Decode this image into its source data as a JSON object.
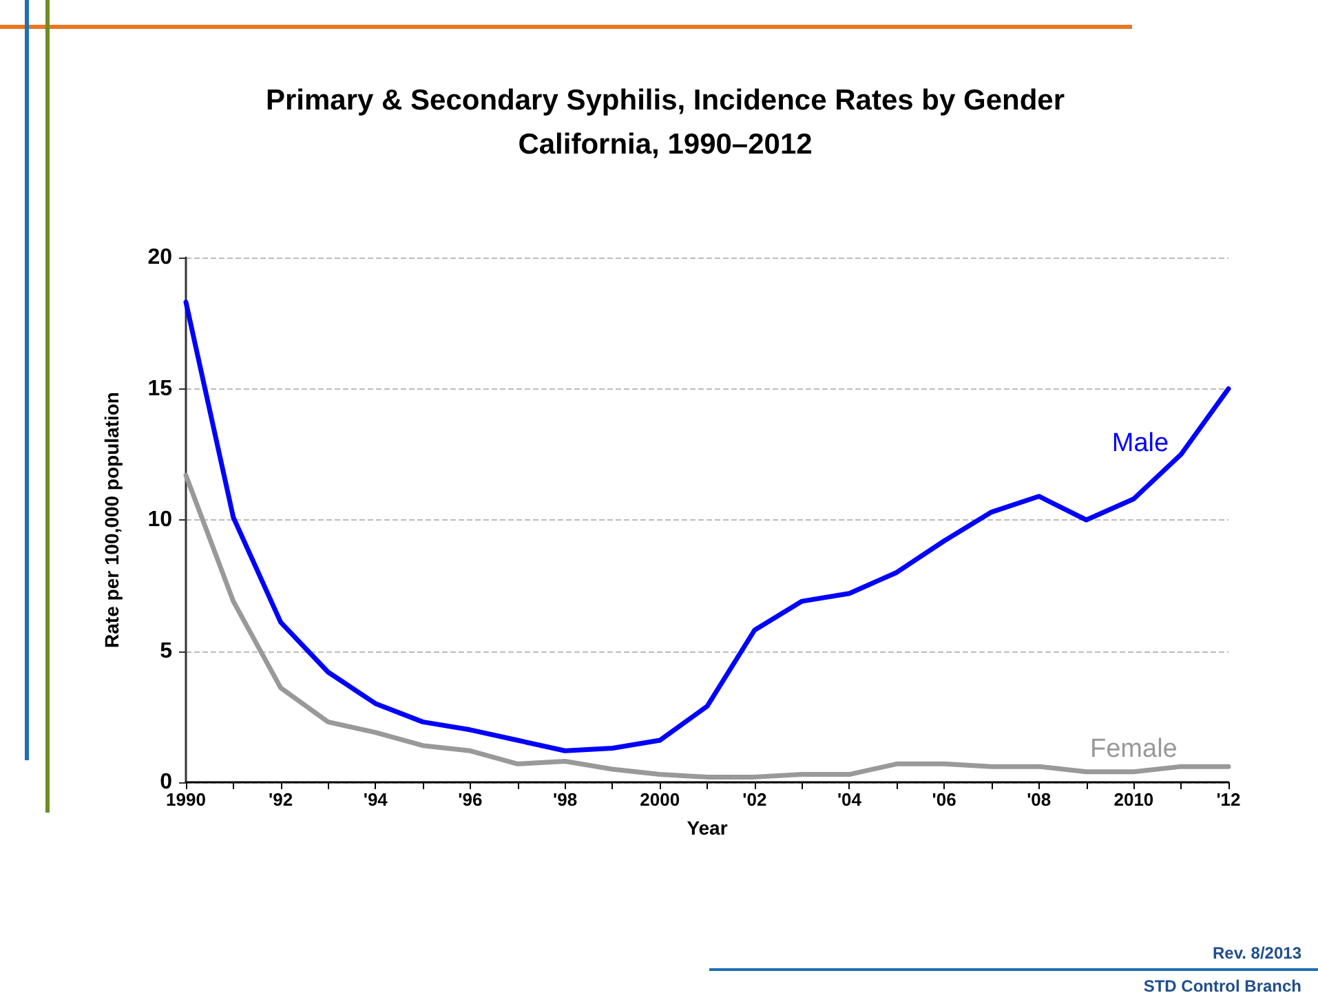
{
  "chart_data": {
    "type": "line",
    "title": "Primary & Secondary Syphilis, Incidence Rates by Gender\nCalifornia, 1990–2012",
    "xlabel": "Year",
    "ylabel": "Rate per 100,000 population",
    "x": [
      1990,
      1991,
      1992,
      1993,
      1994,
      1995,
      1996,
      1997,
      1998,
      1999,
      2000,
      2001,
      2002,
      2003,
      2004,
      2005,
      2006,
      2007,
      2008,
      2009,
      2010,
      2011,
      2012
    ],
    "series": [
      {
        "name": "Male",
        "color": "#0000ff",
        "values": [
          18.3,
          10.1,
          6.1,
          4.2,
          3.0,
          2.3,
          2.0,
          1.6,
          1.2,
          1.3,
          1.6,
          2.9,
          5.8,
          6.9,
          7.2,
          8.0,
          9.2,
          10.3,
          10.9,
          10.0,
          10.8,
          12.5,
          15.0
        ]
      },
      {
        "name": "Female",
        "color": "#999999",
        "values": [
          11.7,
          6.9,
          3.6,
          2.3,
          1.9,
          1.4,
          1.2,
          0.7,
          0.8,
          0.5,
          0.3,
          0.2,
          0.2,
          0.3,
          0.3,
          0.7,
          0.7,
          0.6,
          0.6,
          0.4,
          0.4,
          0.6,
          0.6
        ]
      }
    ],
    "xlim": [
      1990,
      2012
    ],
    "xticks": [
      1990,
      {
        "value": 1991,
        "label": null
      },
      {
        "value": 1992,
        "label": "'92"
      },
      {
        "value": 1993,
        "label": null
      },
      {
        "value": 1994,
        "label": "'94"
      },
      {
        "value": 1995,
        "label": null
      },
      {
        "value": 1996,
        "label": "'96"
      },
      {
        "value": 1997,
        "label": null
      },
      {
        "value": 1998,
        "label": "'98"
      },
      {
        "value": 1999,
        "label": null
      },
      2000,
      {
        "value": 2001,
        "label": null
      },
      {
        "value": 2002,
        "label": "'02"
      },
      {
        "value": 2003,
        "label": null
      },
      {
        "value": 2004,
        "label": "'04"
      },
      {
        "value": 2005,
        "label": null
      },
      {
        "value": 2006,
        "label": "'06"
      },
      {
        "value": 2007,
        "label": null
      },
      {
        "value": 2008,
        "label": "'08"
      },
      {
        "value": 2009,
        "label": null
      },
      2010,
      {
        "value": 2011,
        "label": null
      },
      {
        "value": 2012,
        "label": "'12"
      }
    ],
    "ylim": [
      0,
      20
    ],
    "yticks": [
      0,
      5,
      10,
      15,
      20
    ],
    "grid": "y",
    "legend": false,
    "marker": "none",
    "line_style": "solid",
    "annotations": [
      "Rev. 8/2013",
      "STD Control Branch"
    ]
  }
}
